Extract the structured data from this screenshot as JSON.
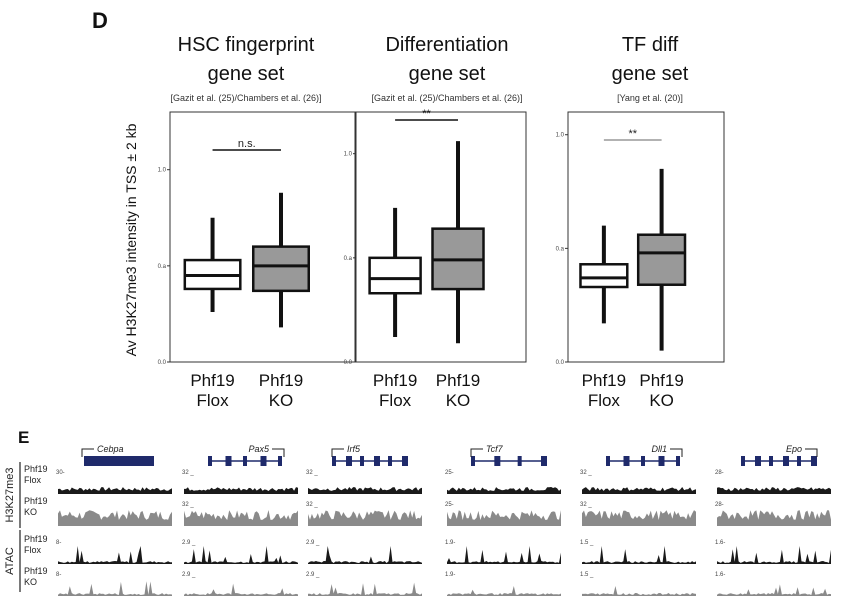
{
  "panel_d": {
    "label": "D",
    "ylabel": "Av H3K27me3 intensity in TSS ± 2 kb"
  },
  "chart_data": [
    {
      "type": "box",
      "title_lines": [
        "HSC fingerprint",
        "gene set"
      ],
      "citation": "[Gazit et al. (25)/Chambers et al. (26)]",
      "yticks": [
        "0.0",
        "0.a",
        "1.0"
      ],
      "ylim": [
        0,
        1.3
      ],
      "categories": [
        "Phf19\nFlox",
        "Phf19\nKO"
      ],
      "category_lines": [
        [
          "Phf19",
          "Flox"
        ],
        [
          "Phf19",
          "KO"
        ]
      ],
      "series": [
        {
          "whisker_low": 0.26,
          "q1": 0.38,
          "median": 0.45,
          "q3": 0.53,
          "whisker_high": 0.75,
          "fill": "#ffffff"
        },
        {
          "whisker_low": 0.18,
          "q1": 0.37,
          "median": 0.5,
          "q3": 0.6,
          "whisker_high": 0.88,
          "fill": "#999999"
        }
      ],
      "significance": "n.s."
    },
    {
      "type": "box",
      "title_lines": [
        "Differentiation",
        "gene set"
      ],
      "citation": "[Gazit et al. (25)/Chambers et al. (26)]",
      "yticks": [
        "0.0",
        "0.a",
        "1.0"
      ],
      "ylim": [
        0,
        1.2
      ],
      "categories": [
        "Phf19\nFlox",
        "Phf19\nKO"
      ],
      "category_lines": [
        [
          "Phf19",
          "Flox"
        ],
        [
          "Phf19",
          "KO"
        ]
      ],
      "series": [
        {
          "whisker_low": 0.12,
          "q1": 0.33,
          "median": 0.4,
          "q3": 0.5,
          "whisker_high": 0.74,
          "fill": "#ffffff"
        },
        {
          "whisker_low": 0.09,
          "q1": 0.35,
          "median": 0.49,
          "q3": 0.64,
          "whisker_high": 1.06,
          "fill": "#999999"
        }
      ],
      "significance": "**"
    },
    {
      "type": "box",
      "title_lines": [
        "TF diff",
        "gene set"
      ],
      "citation": "[Yang et al. (20)]",
      "yticks": [
        "0.0",
        "0.a",
        "1.0"
      ],
      "ylim": [
        0,
        1.1
      ],
      "categories": [
        "Phf19\nFlox",
        "Phf19\nKO"
      ],
      "category_lines": [
        [
          "Phf19",
          "Flox"
        ],
        [
          "Phf19",
          "KO"
        ]
      ],
      "series": [
        {
          "whisker_low": 0.17,
          "q1": 0.33,
          "median": 0.37,
          "q3": 0.43,
          "whisker_high": 0.6,
          "fill": "#ffffff"
        },
        {
          "whisker_low": 0.05,
          "q1": 0.34,
          "median": 0.48,
          "q3": 0.56,
          "whisker_high": 0.85,
          "fill": "#999999"
        }
      ],
      "significance": "**"
    }
  ],
  "panel_e": {
    "label": "E",
    "groups": [
      "H3K27me3",
      "ATAC"
    ],
    "tracks": [
      {
        "group": "H3K27me3",
        "lines": [
          "Phf19",
          "Flox"
        ],
        "color": "#1a1a1a"
      },
      {
        "group": "H3K27me3",
        "lines": [
          "Phf19",
          "KO"
        ],
        "color": "#8a8a8a"
      },
      {
        "group": "ATAC",
        "lines": [
          "Phf19",
          "Flox"
        ],
        "color": "#1a1a1a"
      },
      {
        "group": "ATAC",
        "lines": [
          "Phf19",
          "KO"
        ],
        "color": "#8a8a8a"
      }
    ],
    "genes": [
      {
        "name": "Cebpa",
        "direction": "forward",
        "h3k27me3_scale": "30-",
        "atac_scale": "8-"
      },
      {
        "name": "Pax5",
        "direction": "reverse",
        "h3k27me3_scale": "32 _",
        "atac_scale": "2.9 _"
      },
      {
        "name": "Irf5",
        "direction": "forward",
        "h3k27me3_scale": "32 _",
        "atac_scale": "2.9 _"
      },
      {
        "name": "Tcf7",
        "direction": "forward",
        "h3k27me3_scale": "25-",
        "atac_scale": "1.9-"
      },
      {
        "name": "Dll1",
        "direction": "reverse",
        "h3k27me3_scale": "32 _",
        "atac_scale": "1.5 _"
      },
      {
        "name": "Epo",
        "direction": "reverse",
        "h3k27me3_scale": "28-",
        "atac_scale": "1.6-"
      }
    ],
    "gene_color": "#1f2a6b"
  }
}
